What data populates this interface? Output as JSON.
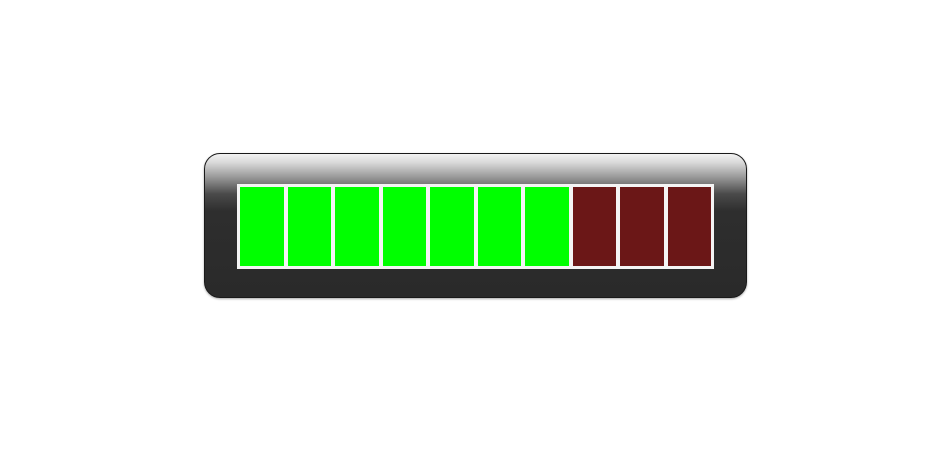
{
  "level_meter": {
    "segments_total": 10,
    "segments_lit": 7,
    "lit_color": "#00ff00",
    "unlit_color": "#6b1717",
    "frame_color": "#2a2a2a"
  }
}
